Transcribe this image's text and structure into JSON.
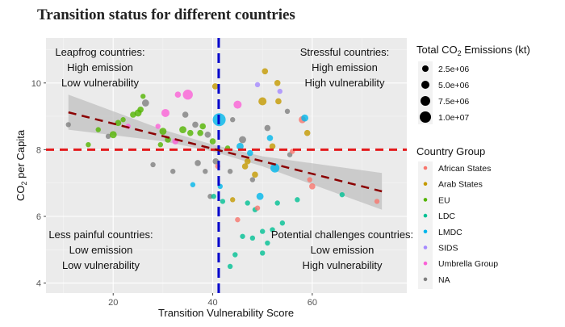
{
  "chart_data": {
    "type": "scatter",
    "title": "Transition status for different countries",
    "xlabel": "Transition Vulnerability Score",
    "ylabel": "CO2 per Capita",
    "xlim": [
      6.5,
      79
    ],
    "ylim": [
      3.7,
      11.35
    ],
    "x_ticks": [
      20,
      40,
      60
    ],
    "y_ticks": [
      4,
      6,
      8,
      10
    ],
    "grid": true,
    "reference_lines": {
      "vertical_x": 41.2,
      "horizontal_y": 8.0,
      "vertical_color": "#0000cc",
      "horizontal_color": "#e31a1c"
    },
    "trend": {
      "x_start": 11,
      "y_start": 9.12,
      "x_end": 74,
      "y_end": 6.75,
      "color": "#8b0000",
      "ci_band": [
        {
          "x": 11,
          "lo": 8.6,
          "hi": 9.65
        },
        {
          "x": 30,
          "lo": 8.25,
          "hi": 8.6
        },
        {
          "x": 40,
          "lo": 7.95,
          "hi": 8.15
        },
        {
          "x": 50,
          "lo": 7.5,
          "hi": 7.8
        },
        {
          "x": 74,
          "lo": 6.2,
          "hi": 7.3
        }
      ]
    },
    "quadrant_labels": [
      {
        "id": "leapfrog",
        "lines": [
          "Leapfrog countries:",
          "High emission",
          "Low vulnerability"
        ],
        "position": "top-left"
      },
      {
        "id": "stressful",
        "lines": [
          "Stressful countries:",
          "High emission",
          "High vulnerability"
        ],
        "position": "top-right"
      },
      {
        "id": "less-painful",
        "lines": [
          "Less painful countries:",
          "Low emission",
          "Low vulnerability"
        ],
        "position": "bottom-left"
      },
      {
        "id": "potential-challenges",
        "lines": [
          "Potential challenges countries:",
          "Low emission",
          "High vulnerability"
        ],
        "position": "bottom-right"
      }
    ],
    "size_legend": {
      "title": "Total CO2 Emissions (kt)",
      "entries": [
        {
          "label": "2.5e+06",
          "value": 2500000
        },
        {
          "label": "5.0e+06",
          "value": 5000000
        },
        {
          "label": "7.5e+06",
          "value": 7500000
        },
        {
          "label": "1.0e+07",
          "value": 10000000
        }
      ]
    },
    "color_legend": {
      "title": "Country Group",
      "groups": [
        {
          "name": "African States",
          "color": "#f8766d"
        },
        {
          "name": "Arab States",
          "color": "#c49a00"
        },
        {
          "name": "EU",
          "color": "#53b400"
        },
        {
          "name": "LDC",
          "color": "#00c094"
        },
        {
          "name": "LMDC",
          "color": "#00b6eb"
        },
        {
          "name": "SIDS",
          "color": "#a58aff"
        },
        {
          "name": "Umbrella Group",
          "color": "#fb61d7"
        },
        {
          "name": "NA",
          "color": "#7f7f7f"
        }
      ]
    },
    "points": [
      {
        "x": 11,
        "y": 8.75,
        "group": "NA",
        "size": 0.2
      },
      {
        "x": 15,
        "y": 8.15,
        "group": "EU",
        "size": 0.2
      },
      {
        "x": 17,
        "y": 8.6,
        "group": "EU",
        "size": 0.2
      },
      {
        "x": 19,
        "y": 8.4,
        "group": "NA",
        "size": 0.2
      },
      {
        "x": 20,
        "y": 8.45,
        "group": "EU",
        "size": 0.4
      },
      {
        "x": 21,
        "y": 8.8,
        "group": "EU",
        "size": 0.3
      },
      {
        "x": 22,
        "y": 8.9,
        "group": "EU",
        "size": 0.2
      },
      {
        "x": 23,
        "y": 8.7,
        "group": "Umbrella Group",
        "size": 0.2
      },
      {
        "x": 24,
        "y": 9.05,
        "group": "EU",
        "size": 0.3
      },
      {
        "x": 25,
        "y": 9.1,
        "group": "EU",
        "size": 0.4
      },
      {
        "x": 25.5,
        "y": 9.2,
        "group": "EU",
        "size": 0.3
      },
      {
        "x": 26,
        "y": 9.6,
        "group": "EU",
        "size": 0.2
      },
      {
        "x": 26.5,
        "y": 9.4,
        "group": "NA",
        "size": 0.4
      },
      {
        "x": 28,
        "y": 7.55,
        "group": "NA",
        "size": 0.2
      },
      {
        "x": 29,
        "y": 8.7,
        "group": "Umbrella Group",
        "size": 0.2
      },
      {
        "x": 29.5,
        "y": 8.15,
        "group": "EU",
        "size": 0.2
      },
      {
        "x": 30,
        "y": 8.55,
        "group": "EU",
        "size": 0.4
      },
      {
        "x": 30.5,
        "y": 9.1,
        "group": "Umbrella Group",
        "size": 0.5
      },
      {
        "x": 31,
        "y": 8.3,
        "group": "EU",
        "size": 0.3
      },
      {
        "x": 32,
        "y": 7.35,
        "group": "NA",
        "size": 0.2
      },
      {
        "x": 32.5,
        "y": 8.25,
        "group": "Umbrella Group",
        "size": 0.3
      },
      {
        "x": 33,
        "y": 9.65,
        "group": "Umbrella Group",
        "size": 0.3
      },
      {
        "x": 34,
        "y": 8.6,
        "group": "EU",
        "size": 0.4
      },
      {
        "x": 34.5,
        "y": 9.05,
        "group": "NA",
        "size": 0.3
      },
      {
        "x": 35,
        "y": 9.65,
        "group": "Umbrella Group",
        "size": 0.7
      },
      {
        "x": 35.5,
        "y": 8.5,
        "group": "EU",
        "size": 0.3
      },
      {
        "x": 36,
        "y": 6.95,
        "group": "LMDC",
        "size": 0.2
      },
      {
        "x": 36.5,
        "y": 8.75,
        "group": "NA",
        "size": 0.3
      },
      {
        "x": 37,
        "y": 7.6,
        "group": "NA",
        "size": 0.3
      },
      {
        "x": 37.5,
        "y": 8.5,
        "group": "EU",
        "size": 0.3
      },
      {
        "x": 38,
        "y": 8.7,
        "group": "EU",
        "size": 0.3
      },
      {
        "x": 38.5,
        "y": 7.35,
        "group": "NA",
        "size": 0.2
      },
      {
        "x": 39,
        "y": 8.45,
        "group": "NA",
        "size": 0.3
      },
      {
        "x": 39.5,
        "y": 6.6,
        "group": "NA",
        "size": 0.2
      },
      {
        "x": 40,
        "y": 8.25,
        "group": "EU",
        "size": 0.3
      },
      {
        "x": 40.5,
        "y": 9.9,
        "group": "Arab States",
        "size": 0.3
      },
      {
        "x": 40.6,
        "y": 7.65,
        "group": "NA",
        "size": 0.3
      },
      {
        "x": 41,
        "y": 7.5,
        "group": "African States",
        "size": 0.2
      },
      {
        "x": 41.3,
        "y": 8.9,
        "group": "LMDC",
        "size": 1.0
      },
      {
        "x": 41.5,
        "y": 6.9,
        "group": "LMDC",
        "size": 0.2
      },
      {
        "x": 40.2,
        "y": 6.6,
        "group": "LDC",
        "size": 0.2
      },
      {
        "x": 43,
        "y": 8.05,
        "group": "EU",
        "size": 0.2
      },
      {
        "x": 43.5,
        "y": 7.35,
        "group": "NA",
        "size": 0.2
      },
      {
        "x": 44,
        "y": 8.9,
        "group": "NA",
        "size": 0.2
      },
      {
        "x": 45,
        "y": 9.35,
        "group": "Umbrella Group",
        "size": 0.5
      },
      {
        "x": 45.5,
        "y": 8.1,
        "group": "LMDC",
        "size": 0.4
      },
      {
        "x": 46,
        "y": 8.3,
        "group": "NA",
        "size": 0.4
      },
      {
        "x": 46.5,
        "y": 7.5,
        "group": "Arab States",
        "size": 0.3
      },
      {
        "x": 47,
        "y": 7.65,
        "group": "Arab States",
        "size": 0.3
      },
      {
        "x": 47.5,
        "y": 7.9,
        "group": "LMDC",
        "size": 0.3
      },
      {
        "x": 48,
        "y": 7.1,
        "group": "NA",
        "size": 0.2
      },
      {
        "x": 48.5,
        "y": 7.25,
        "group": "Arab States",
        "size": 0.3
      },
      {
        "x": 49,
        "y": 9.95,
        "group": "SIDS",
        "size": 0.2
      },
      {
        "x": 49.5,
        "y": 6.6,
        "group": "LMDC",
        "size": 0.4
      },
      {
        "x": 50,
        "y": 9.45,
        "group": "Arab States",
        "size": 0.5
      },
      {
        "x": 50.5,
        "y": 10.35,
        "group": "Arab States",
        "size": 0.3
      },
      {
        "x": 51,
        "y": 8.65,
        "group": "NA",
        "size": 0.3
      },
      {
        "x": 51.5,
        "y": 8.35,
        "group": "LMDC",
        "size": 0.3
      },
      {
        "x": 52,
        "y": 8.1,
        "group": "Arab States",
        "size": 0.3
      },
      {
        "x": 52.5,
        "y": 7.45,
        "group": "LMDC",
        "size": 0.6
      },
      {
        "x": 53,
        "y": 10.0,
        "group": "Arab States",
        "size": 0.3
      },
      {
        "x": 53.2,
        "y": 9.45,
        "group": "Arab States",
        "size": 0.3
      },
      {
        "x": 53.5,
        "y": 9.75,
        "group": "SIDS",
        "size": 0.2
      },
      {
        "x": 55,
        "y": 9.15,
        "group": "NA",
        "size": 0.2
      },
      {
        "x": 55.5,
        "y": 7.85,
        "group": "NA",
        "size": 0.2
      },
      {
        "x": 56,
        "y": 7.95,
        "group": "African States",
        "size": 0.2
      },
      {
        "x": 57,
        "y": 6.5,
        "group": "LDC",
        "size": 0.2
      },
      {
        "x": 58,
        "y": 8.9,
        "group": "African States",
        "size": 0.4
      },
      {
        "x": 58.5,
        "y": 8.95,
        "group": "LMDC",
        "size": 0.4
      },
      {
        "x": 59,
        "y": 8.5,
        "group": "Arab States",
        "size": 0.3
      },
      {
        "x": 59.5,
        "y": 7.1,
        "group": "African States",
        "size": 0.2
      },
      {
        "x": 60,
        "y": 6.9,
        "group": "African States",
        "size": 0.3
      },
      {
        "x": 66,
        "y": 6.65,
        "group": "LDC",
        "size": 0.2
      },
      {
        "x": 73,
        "y": 6.45,
        "group": "African States",
        "size": 0.2
      },
      {
        "x": 42,
        "y": 6.45,
        "group": "LDC",
        "size": 0.2
      },
      {
        "x": 44,
        "y": 6.5,
        "group": "Arab States",
        "size": 0.2
      },
      {
        "x": 45,
        "y": 5.9,
        "group": "African States",
        "size": 0.2
      },
      {
        "x": 46,
        "y": 5.4,
        "group": "LDC",
        "size": 0.2
      },
      {
        "x": 47,
        "y": 6.4,
        "group": "LDC",
        "size": 0.2
      },
      {
        "x": 48,
        "y": 5.35,
        "group": "LDC",
        "size": 0.2
      },
      {
        "x": 48.5,
        "y": 6.2,
        "group": "LDC",
        "size": 0.2
      },
      {
        "x": 49,
        "y": 6.25,
        "group": "African States",
        "size": 0.2
      },
      {
        "x": 50,
        "y": 5.55,
        "group": "LDC",
        "size": 0.2
      },
      {
        "x": 51,
        "y": 5.2,
        "group": "LDC",
        "size": 0.2
      },
      {
        "x": 52,
        "y": 5.6,
        "group": "LDC",
        "size": 0.2
      },
      {
        "x": 53,
        "y": 6.4,
        "group": "LDC",
        "size": 0.2
      },
      {
        "x": 54,
        "y": 5.8,
        "group": "LDC",
        "size": 0.2
      },
      {
        "x": 44.5,
        "y": 4.85,
        "group": "LDC",
        "size": 0.2
      },
      {
        "x": 43.5,
        "y": 4.5,
        "group": "LDC",
        "size": 0.2
      },
      {
        "x": 50,
        "y": 4.9,
        "group": "LDC",
        "size": 0.2
      }
    ]
  }
}
